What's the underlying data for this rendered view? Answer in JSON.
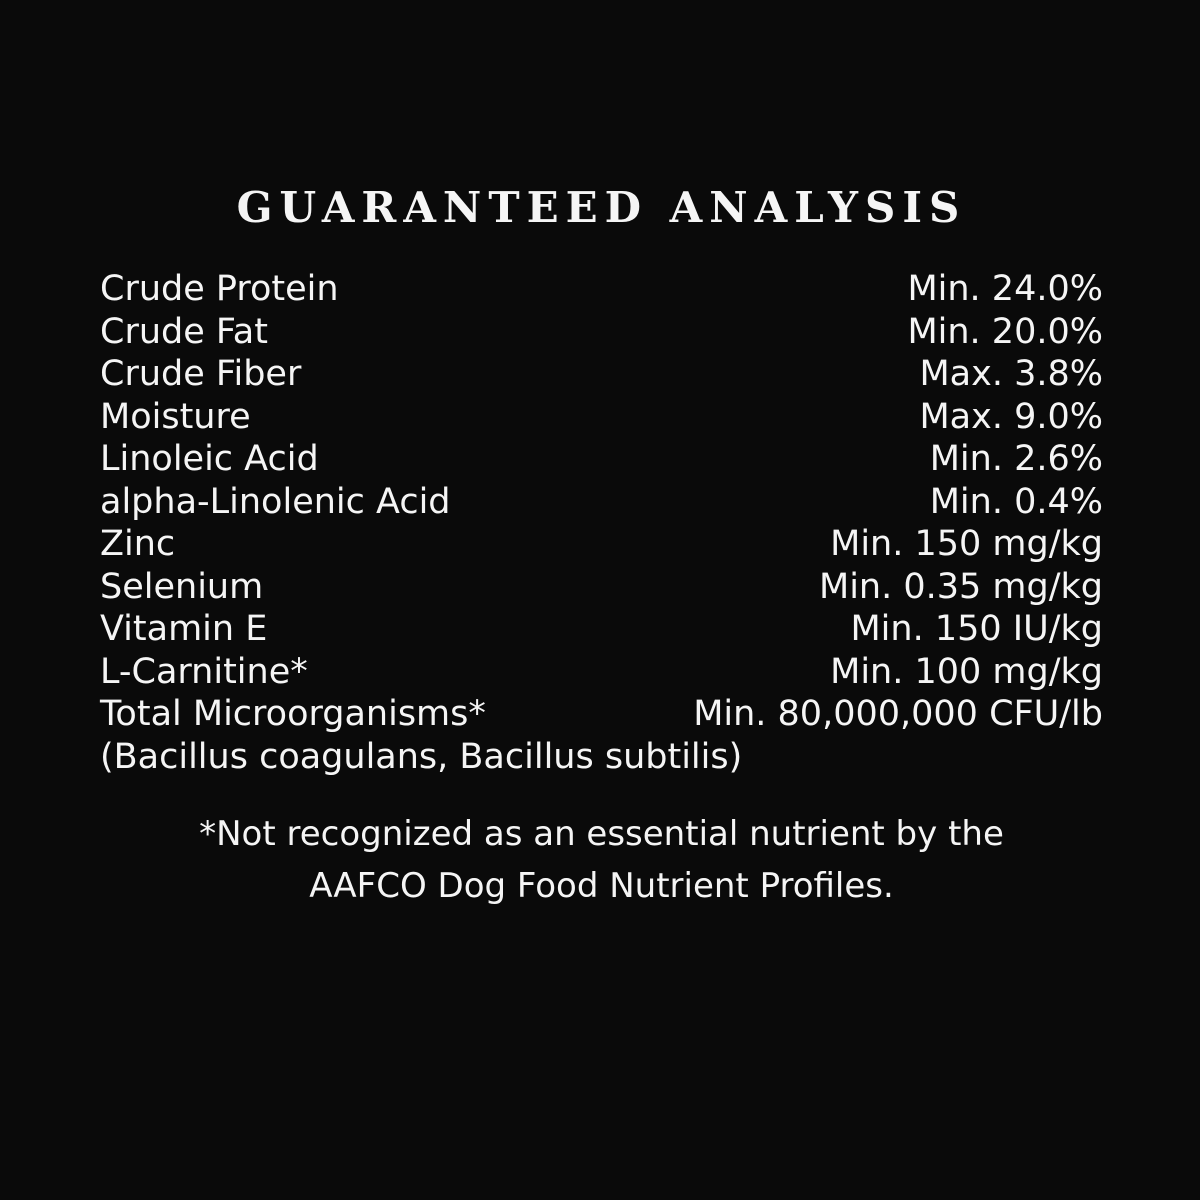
{
  "page": {
    "background_color": "#0a0a0a",
    "text_color": "#f5f5f5"
  },
  "title": "GUARANTEED ANALYSIS",
  "analysis": {
    "rows": [
      {
        "label": "Crude Protein",
        "value": "Min. 24.0%"
      },
      {
        "label": "Crude Fat",
        "value": "Min. 20.0%"
      },
      {
        "label": "Crude Fiber",
        "value": "Max. 3.8%"
      },
      {
        "label": "Moisture",
        "value": "Max. 9.0%"
      },
      {
        "label": "Linoleic Acid",
        "value": "Min. 2.6%"
      },
      {
        "label": "alpha-Linolenic Acid",
        "value": "Min. 0.4%"
      },
      {
        "label": "Zinc",
        "value": "Min. 150 mg/kg"
      },
      {
        "label": "Selenium",
        "value": "Min. 0.35 mg/kg"
      },
      {
        "label": "Vitamin E",
        "value": "Min. 150 IU/kg"
      },
      {
        "label": "L-Carnitine*",
        "value": "Min. 100 mg/kg"
      },
      {
        "label": "Total Microorganisms*",
        "value": "Min. 80,000,000 CFU/lb"
      }
    ],
    "continuation": "(Bacillus coagulans, Bacillus subtilis)"
  },
  "footnote": {
    "line1": "*Not recognized as an essential nutrient by the",
    "line2": "AAFCO Dog Food Nutrient Profiles."
  }
}
